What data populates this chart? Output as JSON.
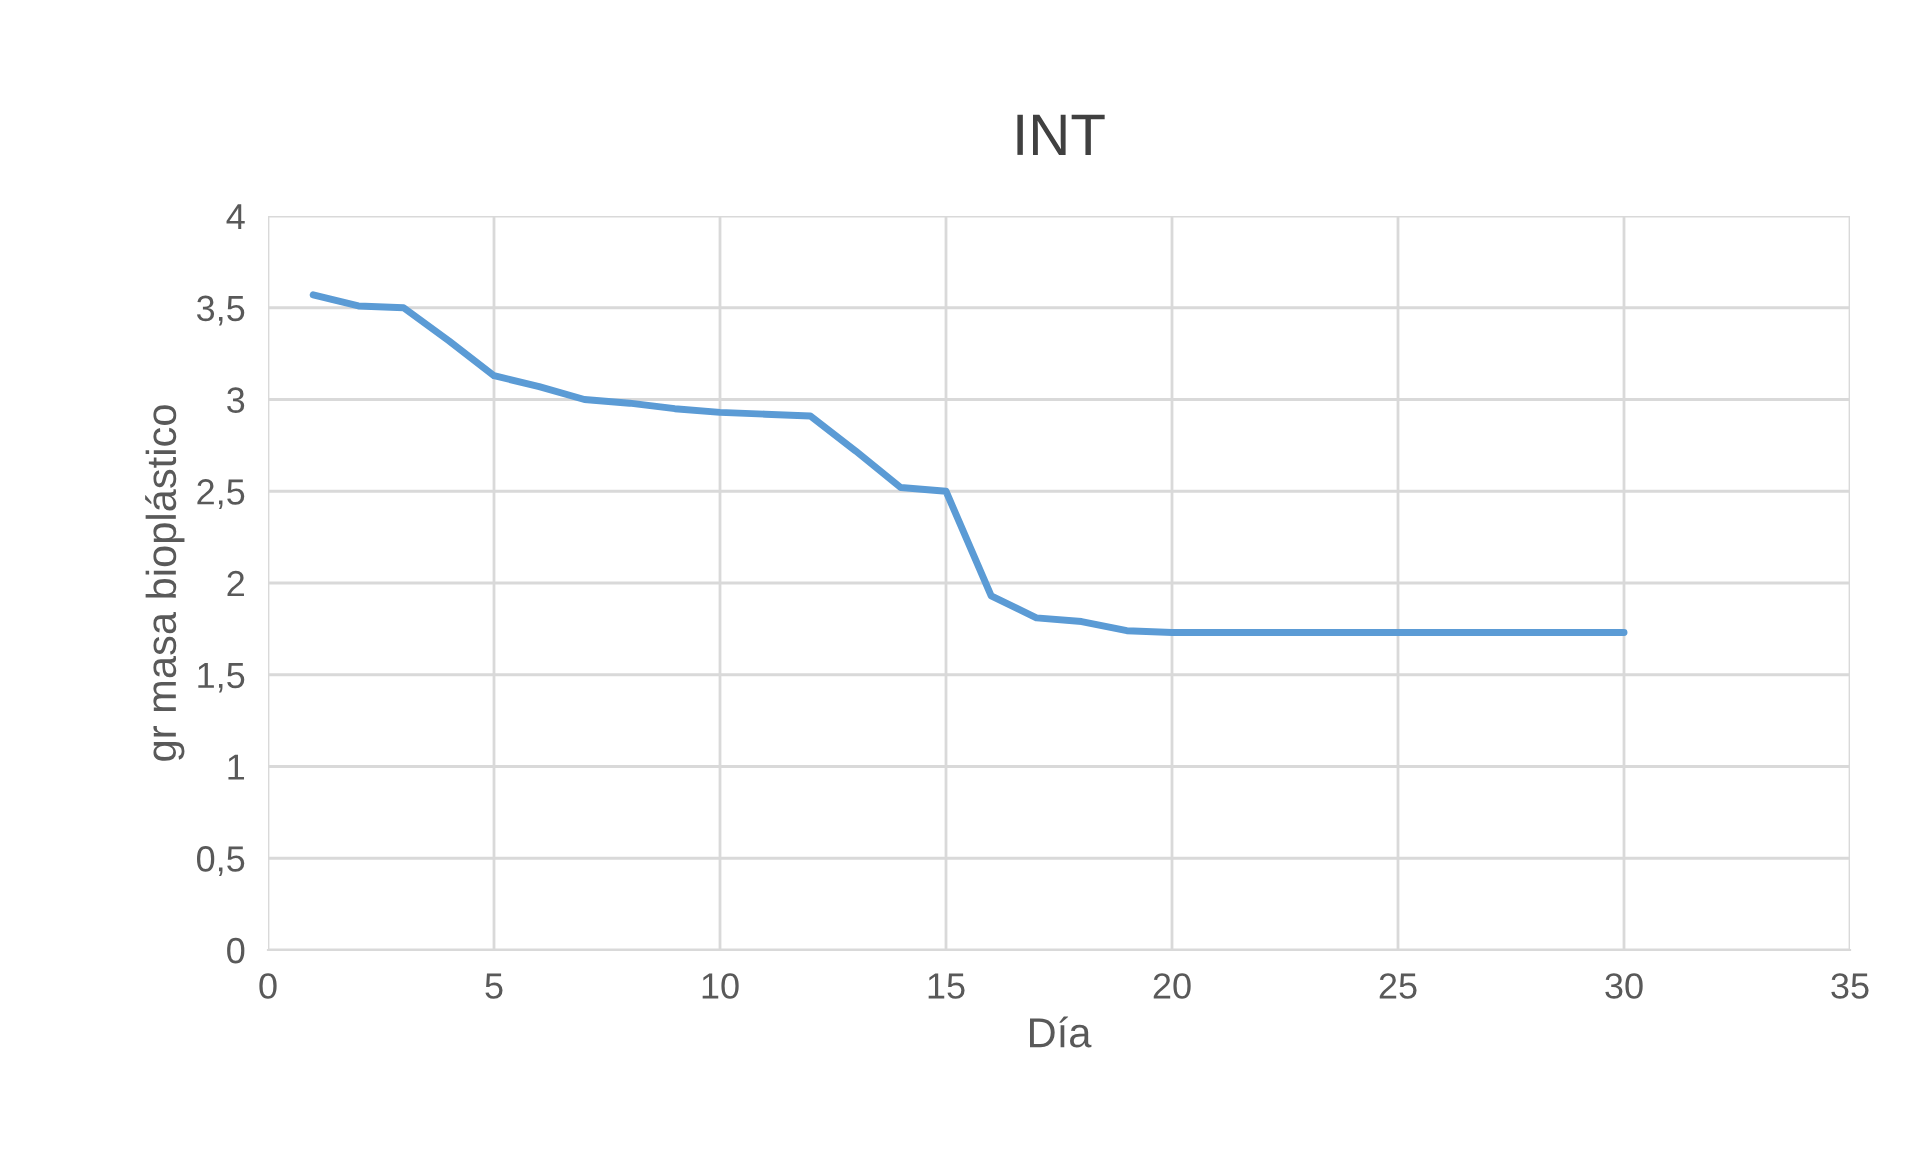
{
  "chart_data": {
    "type": "line",
    "title": "INT",
    "xlabel": "Día",
    "ylabel": "gr masa bioplástico",
    "x": [
      1,
      2,
      3,
      4,
      5,
      6,
      7,
      8,
      9,
      10,
      11,
      12,
      13,
      14,
      15,
      16,
      17,
      18,
      19,
      20,
      21,
      22,
      23,
      24,
      25,
      26,
      27,
      28,
      29,
      30
    ],
    "series": [
      {
        "color": "#5b9bd5",
        "values": [
          3.57,
          3.51,
          3.5,
          3.32,
          3.13,
          3.07,
          3.0,
          2.98,
          2.95,
          2.93,
          2.92,
          2.91,
          2.72,
          2.52,
          2.5,
          1.93,
          1.81,
          1.79,
          1.74,
          1.73,
          1.73,
          1.73,
          1.73,
          1.73,
          1.73,
          1.73,
          1.73,
          1.73,
          1.73,
          1.73
        ]
      }
    ],
    "xlim": [
      0,
      35
    ],
    "xticks": [
      0,
      5,
      10,
      15,
      20,
      25,
      30,
      35
    ],
    "ylim": [
      0,
      4
    ],
    "yticks": [
      0,
      {
        "value": 0.5,
        "label": "0,5"
      },
      1,
      {
        "value": 1.5,
        "label": "1,5"
      },
      2,
      {
        "value": 2.5,
        "label": "2,5"
      },
      3,
      {
        "value": 3.5,
        "label": "3,5"
      },
      4
    ],
    "grid": true,
    "marker": "none",
    "line_style": "solid"
  }
}
